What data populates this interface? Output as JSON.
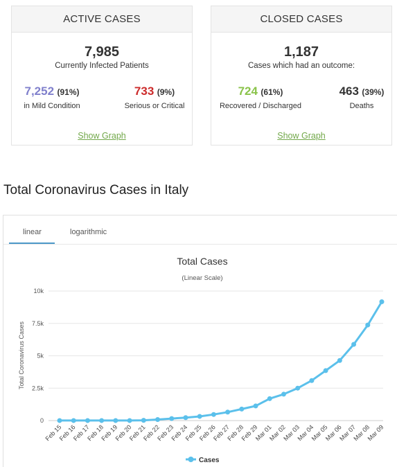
{
  "active": {
    "header": "ACTIVE CASES",
    "total": "7,985",
    "total_label": "Currently Infected Patients",
    "mild_value": "7,252",
    "mild_pct": "(91%)",
    "mild_label": "in Mild Condition",
    "serious_value": "733",
    "serious_pct": "(9%)",
    "serious_label": "Serious or Critical",
    "show_graph": "Show Graph"
  },
  "closed": {
    "header": "CLOSED CASES",
    "total": "1,187",
    "total_label": "Cases which had an outcome:",
    "recovered_value": "724",
    "recovered_pct": "(61%)",
    "recovered_label": "Recovered / Discharged",
    "deaths_value": "463",
    "deaths_pct": "(39%)",
    "deaths_label": "Deaths",
    "show_graph": "Show Graph"
  },
  "section_title": "Total Coronavirus Cases in Italy",
  "tabs": [
    {
      "label": "linear",
      "active": true
    },
    {
      "label": "logarithmic",
      "active": false
    }
  ],
  "colors": {
    "mild": "#8080cc",
    "serious": "#cc2b2b",
    "recovered": "#8ac34a",
    "deaths": "#333333",
    "line": "#5bc0eb",
    "link": "#72a84a"
  },
  "chart_data": {
    "type": "line",
    "title": "Total Cases",
    "subtitle": "(Linear Scale)",
    "ylabel": "Total Coronavirus Cases",
    "xlabel": "",
    "ylim": [
      0,
      10000
    ],
    "yticks": [
      0,
      2500,
      5000,
      7500,
      10000
    ],
    "ytick_labels": [
      "0",
      "2.5k",
      "5k",
      "7.5k",
      "10k"
    ],
    "grid": true,
    "legend": "bottom-center",
    "categories": [
      "Feb 15",
      "Feb 16",
      "Feb 17",
      "Feb 18",
      "Feb 19",
      "Feb 20",
      "Feb 21",
      "Feb 22",
      "Feb 23",
      "Feb 24",
      "Feb 25",
      "Feb 26",
      "Feb 27",
      "Feb 28",
      "Feb 29",
      "Mar 01",
      "Mar 02",
      "Mar 03",
      "Mar 04",
      "Mar 05",
      "Mar 06",
      "Mar 07",
      "Mar 08",
      "Mar 09"
    ],
    "series": [
      {
        "name": "Cases",
        "values": [
          3,
          3,
          3,
          3,
          3,
          3,
          20,
          79,
          157,
          229,
          323,
          470,
          655,
          889,
          1128,
          1694,
          2036,
          2502,
          3089,
          3858,
          4636,
          5883,
          7375,
          9172
        ]
      }
    ]
  }
}
